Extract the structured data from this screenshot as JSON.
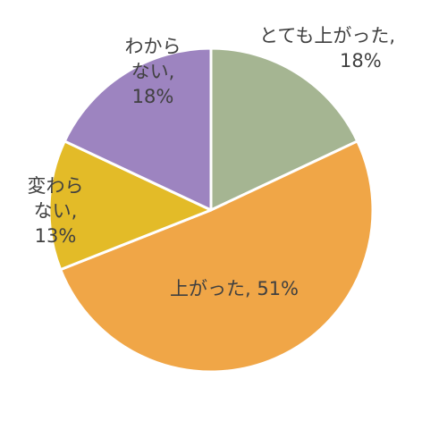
{
  "chart_data": {
    "type": "pie",
    "title": "",
    "start_angle_deg": 0,
    "direction": "clockwise",
    "slice_border_color": "#ffffff",
    "slices": [
      {
        "label_lines": [
          "とても上がった,",
          "18%"
        ],
        "value": 18,
        "color": "#a5b592"
      },
      {
        "label_lines": [
          "上がった, 51%"
        ],
        "value": 51,
        "color": "#f0a647"
      },
      {
        "label_lines": [
          "変わら",
          "ない,",
          "13%"
        ],
        "value": 13,
        "color": "#e3bb28"
      },
      {
        "label_lines": [
          "わから",
          "ない,",
          "18%"
        ],
        "value": 18,
        "color": "#9d84c0"
      }
    ]
  }
}
